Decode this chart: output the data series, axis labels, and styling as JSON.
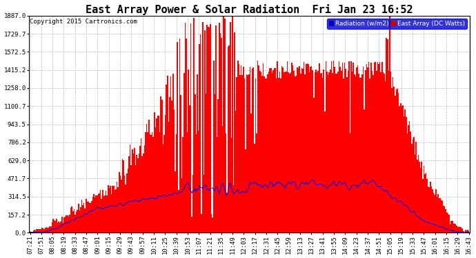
{
  "title": "East Array Power & Solar Radiation  Fri Jan 23 16:52",
  "copyright": "Copyright 2015 Cartronics.com",
  "legend_labels": [
    "Radiation (w/m2)",
    "East Array (DC Watts)"
  ],
  "legend_colors_bg": [
    "#0000cc",
    "#cc0000"
  ],
  "legend_text_color": "#ffffff",
  "y_max": 1887.0,
  "y_min": 0.0,
  "y_ticks": [
    0.0,
    157.2,
    314.5,
    471.7,
    629.0,
    786.2,
    943.5,
    1100.7,
    1258.0,
    1415.2,
    1572.5,
    1729.7,
    1887.0
  ],
  "background_color": "#ffffff",
  "plot_bg_color": "#ffffff",
  "grid_color": "#aaaaaa",
  "x_labels": [
    "07:21",
    "07:51",
    "08:05",
    "08:19",
    "08:33",
    "08:47",
    "09:01",
    "09:15",
    "09:29",
    "09:43",
    "09:57",
    "10:11",
    "10:25",
    "10:39",
    "10:53",
    "11:07",
    "11:21",
    "11:35",
    "11:49",
    "12:03",
    "12:17",
    "12:31",
    "12:45",
    "12:59",
    "13:13",
    "13:27",
    "13:41",
    "13:55",
    "14:09",
    "14:23",
    "14:37",
    "14:51",
    "15:05",
    "15:19",
    "15:33",
    "15:47",
    "16:01",
    "16:15",
    "16:29",
    "16:43"
  ],
  "title_fontsize": 11,
  "axis_fontsize": 6.5,
  "copyright_fontsize": 6.5,
  "n_points": 400
}
